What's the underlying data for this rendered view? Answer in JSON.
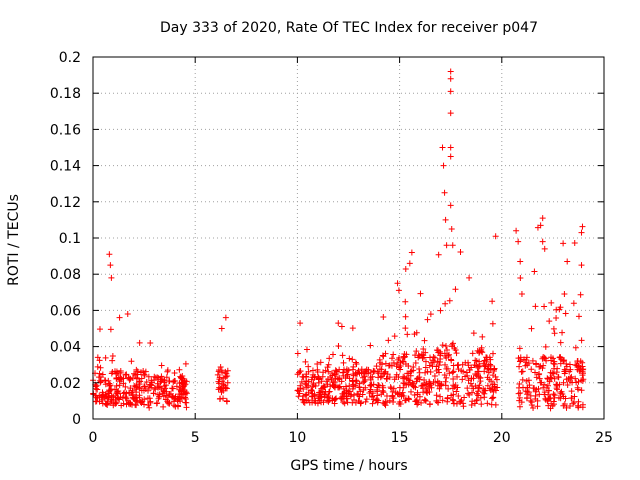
{
  "chart_data": {
    "type": "scatter",
    "title": "Day 333 of 2020, Rate Of TEC Index for receiver p047",
    "xlabel": "GPS time / hours",
    "ylabel": "ROTI / TECUs",
    "xlim": [
      0,
      25
    ],
    "ylim": [
      0,
      0.2
    ],
    "xticks": [
      0,
      5,
      10,
      15,
      20,
      25
    ],
    "yticks": [
      0,
      0.02,
      0.04,
      0.06,
      0.08,
      0.1,
      0.12,
      0.14,
      0.16,
      0.18,
      0.2
    ],
    "grid": true,
    "marker": "+",
    "color": "#ff0000",
    "series": [
      {
        "name": "ROTI",
        "segments": [
          {
            "x_start": 0.0,
            "x_end": 2.7,
            "base": 0.017,
            "spread": 0.012,
            "peak_max": 0.05
          },
          {
            "x_start": 2.7,
            "x_end": 4.6,
            "base": 0.015,
            "spread": 0.011,
            "peak_max": 0.037
          },
          {
            "x_start": 6.1,
            "x_end": 6.6,
            "base": 0.018,
            "spread": 0.012,
            "peak_max": 0.056
          },
          {
            "x_start": 10.0,
            "x_end": 14.0,
            "base": 0.018,
            "spread": 0.012,
            "peak_max": 0.053
          },
          {
            "x_start": 14.0,
            "x_end": 16.8,
            "base": 0.022,
            "spread": 0.018,
            "peak_max": 0.09
          },
          {
            "x_start": 16.8,
            "x_end": 18.0,
            "base": 0.025,
            "spread": 0.022,
            "peak_max": 0.12
          },
          {
            "x_start": 18.0,
            "x_end": 19.8,
            "base": 0.023,
            "spread": 0.02,
            "peak_max": 0.07
          },
          {
            "x_start": 20.8,
            "x_end": 24.0,
            "base": 0.02,
            "spread": 0.018,
            "peak_max": 0.11
          }
        ],
        "peaks": [
          {
            "x": 0.8,
            "y": 0.091
          },
          {
            "x": 0.85,
            "y": 0.085
          },
          {
            "x": 0.9,
            "y": 0.078
          },
          {
            "x": 1.3,
            "y": 0.056
          },
          {
            "x": 1.7,
            "y": 0.058
          },
          {
            "x": 2.8,
            "y": 0.042
          },
          {
            "x": 6.3,
            "y": 0.05
          },
          {
            "x": 6.5,
            "y": 0.056
          },
          {
            "x": 12.0,
            "y": 0.053
          },
          {
            "x": 14.9,
            "y": 0.075
          },
          {
            "x": 15.6,
            "y": 0.092
          },
          {
            "x": 15.5,
            "y": 0.086
          },
          {
            "x": 17.1,
            "y": 0.15
          },
          {
            "x": 17.15,
            "y": 0.14
          },
          {
            "x": 17.2,
            "y": 0.125
          },
          {
            "x": 17.25,
            "y": 0.11
          },
          {
            "x": 17.3,
            "y": 0.096
          },
          {
            "x": 17.5,
            "y": 0.192
          },
          {
            "x": 17.5,
            "y": 0.188
          },
          {
            "x": 17.5,
            "y": 0.181
          },
          {
            "x": 17.5,
            "y": 0.169
          },
          {
            "x": 17.5,
            "y": 0.15
          },
          {
            "x": 17.5,
            "y": 0.145
          },
          {
            "x": 17.5,
            "y": 0.118
          },
          {
            "x": 17.55,
            "y": 0.105
          },
          {
            "x": 17.6,
            "y": 0.096
          },
          {
            "x": 18.4,
            "y": 0.078
          },
          {
            "x": 19.7,
            "y": 0.101
          },
          {
            "x": 20.7,
            "y": 0.104
          },
          {
            "x": 20.8,
            "y": 0.098
          },
          {
            "x": 20.9,
            "y": 0.087
          },
          {
            "x": 21.9,
            "y": 0.107
          },
          {
            "x": 22.0,
            "y": 0.111
          },
          {
            "x": 22.0,
            "y": 0.098
          },
          {
            "x": 22.1,
            "y": 0.094
          },
          {
            "x": 23.0,
            "y": 0.097
          },
          {
            "x": 23.2,
            "y": 0.087
          },
          {
            "x": 23.9,
            "y": 0.103
          },
          {
            "x": 23.9,
            "y": 0.085
          }
        ]
      }
    ]
  }
}
